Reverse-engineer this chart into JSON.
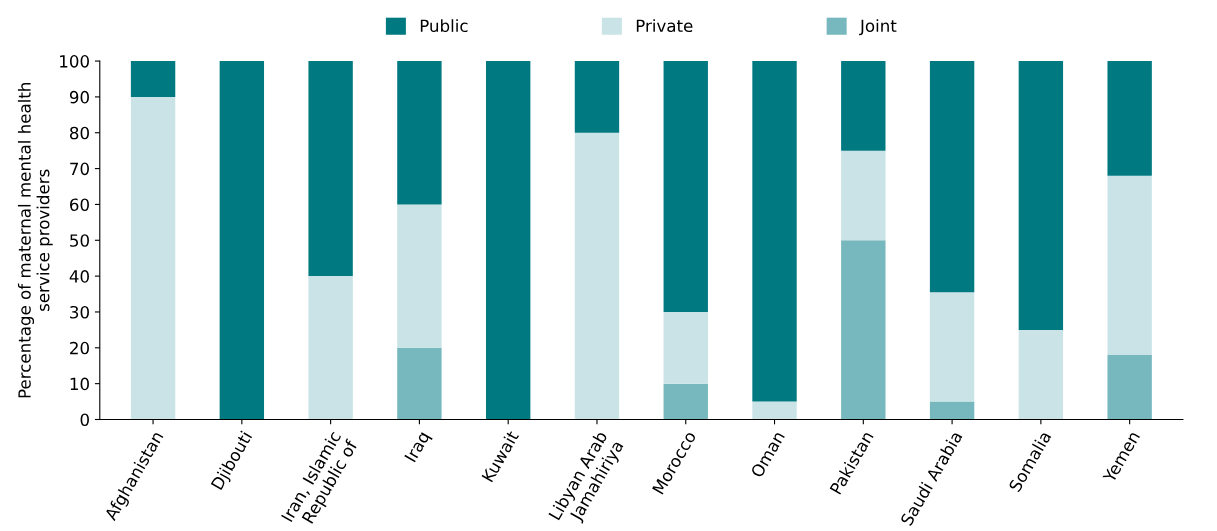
{
  "chart_data": {
    "type": "bar",
    "stacked": true,
    "ylabel": "Percentage of maternal mental health\nservice providers",
    "categories": [
      "Afghanistan",
      "Djibouti",
      "Iran, Islamic\nRepublic of",
      "Iraq",
      "Kuwait",
      "Libyan Arab\nJamahiriya",
      "Morocco",
      "Oman",
      "Pakistan",
      "Saudi Arabia",
      "Somalia",
      "Yemen"
    ],
    "series": [
      {
        "name": "Joint",
        "color": "#76b8bd",
        "values": [
          0,
          0,
          0,
          20,
          0,
          0,
          10,
          0,
          50,
          5,
          0,
          18
        ]
      },
      {
        "name": "Private",
        "color": "#c9e3e6",
        "values": [
          90,
          0,
          40,
          40,
          0,
          80,
          20,
          5,
          25,
          30.5,
          25,
          50
        ]
      },
      {
        "name": "Public",
        "color": "#007a80",
        "values": [
          10,
          100,
          60,
          40,
          100,
          20,
          70,
          95,
          25,
          64.5,
          75,
          32
        ]
      }
    ],
    "ylim": [
      0,
      100
    ],
    "yticks": [
      0,
      10,
      20,
      30,
      40,
      50,
      60,
      70,
      80,
      90,
      100
    ],
    "grid": false,
    "legend": "top"
  }
}
